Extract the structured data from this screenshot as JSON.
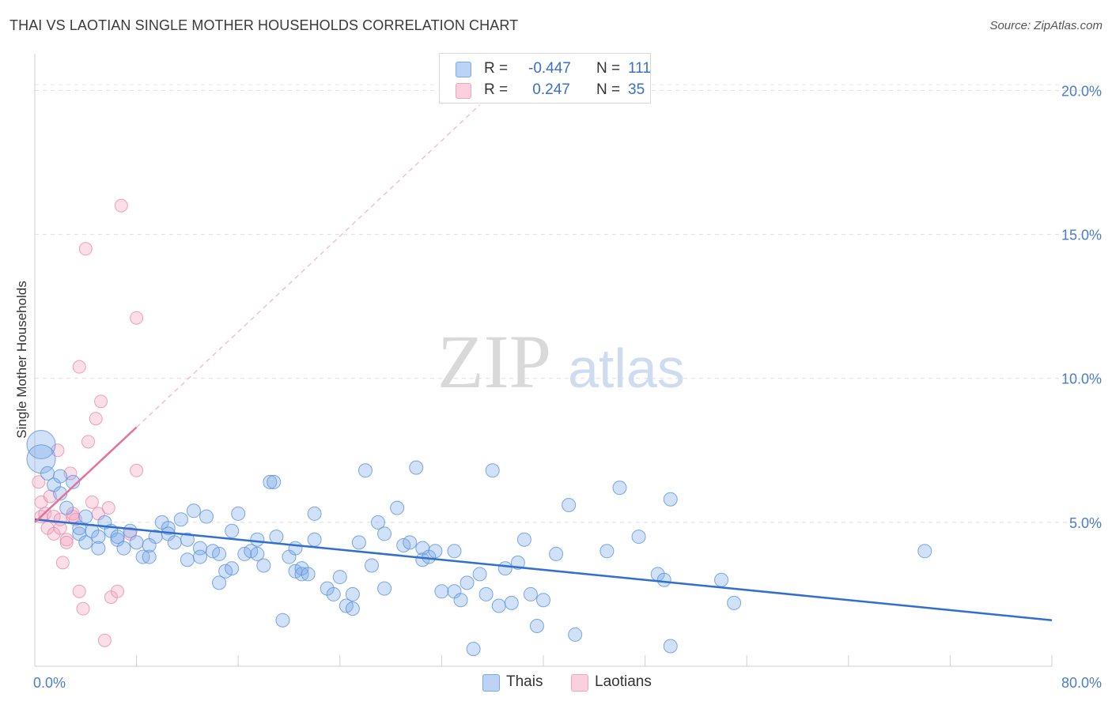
{
  "chart_data": {
    "type": "scatter",
    "title": "THAI VS LAOTIAN SINGLE MOTHER HOUSEHOLDS CORRELATION CHART",
    "source": "Source: ZipAtlas.com",
    "ylabel": "Single Mother Households",
    "xlabel": "",
    "xlim": [
      0,
      80
    ],
    "ylim": [
      0,
      21
    ],
    "x_tick_labels": [
      "0.0%",
      "80.0%"
    ],
    "y_ticks": [
      5,
      10,
      15,
      20
    ],
    "y_tick_labels": [
      "5.0%",
      "10.0%",
      "15.0%",
      "20.0%"
    ],
    "grid": "horizontal dashed",
    "watermark": {
      "zip": "ZIP",
      "atlas": "atlas"
    },
    "legend": {
      "placement": "top-center",
      "rows": [
        {
          "r_label": "R = ",
          "r_value": "-0.447",
          "n_label": "N = ",
          "n_value": "111"
        },
        {
          "r_label": "R = ",
          "r_value": " 0.247",
          "n_label": "N = ",
          "n_value": "35"
        }
      ]
    },
    "series": [
      {
        "name": "Thais",
        "color": "#7aaae8",
        "trend": {
          "x": [
            0,
            80
          ],
          "y": [
            5.1,
            1.6
          ]
        },
        "points": [
          [
            0.5,
            7.7
          ],
          [
            0.5,
            7.2
          ],
          [
            1.0,
            6.7
          ],
          [
            1.5,
            6.3
          ],
          [
            2.0,
            6.6
          ],
          [
            3.0,
            6.4
          ],
          [
            2.0,
            6.0
          ],
          [
            2.5,
            5.5
          ],
          [
            4.0,
            5.2
          ],
          [
            5.5,
            5.0
          ],
          [
            3.5,
            4.6
          ],
          [
            4.5,
            4.7
          ],
          [
            5.0,
            4.5
          ],
          [
            6.0,
            4.7
          ],
          [
            6.5,
            4.4
          ],
          [
            7.5,
            4.7
          ],
          [
            8.0,
            4.3
          ],
          [
            7.0,
            4.1
          ],
          [
            4.0,
            4.3
          ],
          [
            5.0,
            4.1
          ],
          [
            8.5,
            3.8
          ],
          [
            9.0,
            3.8
          ],
          [
            9.5,
            4.5
          ],
          [
            10.0,
            5.0
          ],
          [
            10.5,
            4.8
          ],
          [
            10.5,
            4.6
          ],
          [
            11.0,
            4.3
          ],
          [
            11.5,
            5.1
          ],
          [
            12.0,
            4.4
          ],
          [
            12.0,
            3.7
          ],
          [
            12.5,
            5.4
          ],
          [
            13.0,
            4.1
          ],
          [
            13.0,
            3.8
          ],
          [
            13.5,
            5.2
          ],
          [
            14.0,
            4.0
          ],
          [
            14.5,
            3.9
          ],
          [
            14.5,
            2.9
          ],
          [
            15.0,
            3.3
          ],
          [
            15.5,
            4.7
          ],
          [
            15.5,
            3.4
          ],
          [
            16.0,
            5.3
          ],
          [
            16.5,
            3.9
          ],
          [
            17.0,
            4.0
          ],
          [
            17.5,
            4.4
          ],
          [
            18.0,
            3.5
          ],
          [
            17.5,
            3.9
          ],
          [
            18.5,
            6.4
          ],
          [
            18.8,
            6.4
          ],
          [
            19.0,
            4.5
          ],
          [
            19.5,
            1.6
          ],
          [
            20.0,
            3.8
          ],
          [
            20.5,
            4.1
          ],
          [
            20.5,
            3.3
          ],
          [
            21.0,
            3.4
          ],
          [
            21.0,
            3.2
          ],
          [
            21.5,
            3.2
          ],
          [
            22.0,
            5.3
          ],
          [
            22.0,
            4.4
          ],
          [
            23.0,
            2.7
          ],
          [
            23.5,
            2.5
          ],
          [
            24.0,
            3.1
          ],
          [
            24.5,
            2.1
          ],
          [
            25.0,
            2.5
          ],
          [
            25.0,
            2.0
          ],
          [
            25.5,
            4.3
          ],
          [
            26.0,
            6.8
          ],
          [
            26.5,
            3.5
          ],
          [
            27.0,
            5.0
          ],
          [
            27.5,
            2.7
          ],
          [
            27.5,
            4.6
          ],
          [
            28.5,
            5.5
          ],
          [
            29.0,
            4.2
          ],
          [
            29.5,
            4.3
          ],
          [
            30.0,
            6.9
          ],
          [
            30.5,
            4.1
          ],
          [
            30.5,
            3.7
          ],
          [
            31.0,
            3.8
          ],
          [
            31.5,
            4.0
          ],
          [
            32.0,
            2.6
          ],
          [
            33.0,
            4.0
          ],
          [
            33.0,
            2.6
          ],
          [
            33.5,
            2.3
          ],
          [
            34.0,
            2.9
          ],
          [
            34.5,
            0.6
          ],
          [
            35.0,
            3.2
          ],
          [
            35.5,
            2.5
          ],
          [
            36.0,
            6.8
          ],
          [
            36.5,
            2.1
          ],
          [
            37.0,
            3.4
          ],
          [
            37.5,
            2.2
          ],
          [
            38.0,
            3.6
          ],
          [
            38.5,
            4.4
          ],
          [
            39.0,
            2.5
          ],
          [
            39.5,
            1.4
          ],
          [
            40.0,
            2.3
          ],
          [
            41.0,
            3.9
          ],
          [
            42.0,
            5.6
          ],
          [
            42.5,
            1.1
          ],
          [
            45.0,
            4.0
          ],
          [
            46.0,
            6.2
          ],
          [
            47.5,
            4.5
          ],
          [
            49.0,
            3.2
          ],
          [
            49.5,
            3.0
          ],
          [
            50.0,
            5.8
          ],
          [
            50.0,
            0.7
          ],
          [
            54.0,
            3.0
          ],
          [
            55.0,
            2.2
          ],
          [
            70.0,
            4.0
          ],
          [
            3.5,
            4.8
          ],
          [
            6.5,
            4.5
          ],
          [
            9.0,
            4.2
          ]
        ]
      },
      {
        "name": "Laotians",
        "color": "#f2a3bf",
        "trend": {
          "x": [
            0,
            8
          ],
          "y": [
            5.0,
            8.3
          ]
        },
        "trend_extension": {
          "x": [
            8,
            35
          ],
          "y": [
            8.3,
            19.5
          ]
        },
        "points": [
          [
            0.3,
            6.4
          ],
          [
            0.5,
            5.7
          ],
          [
            0.5,
            5.2
          ],
          [
            0.8,
            5.3
          ],
          [
            1.0,
            4.8
          ],
          [
            1.2,
            5.9
          ],
          [
            1.5,
            5.2
          ],
          [
            1.8,
            7.5
          ],
          [
            1.5,
            4.6
          ],
          [
            2.0,
            5.1
          ],
          [
            2.0,
            4.8
          ],
          [
            2.2,
            3.6
          ],
          [
            2.5,
            4.4
          ],
          [
            2.5,
            4.3
          ],
          [
            2.8,
            6.7
          ],
          [
            3.0,
            5.3
          ],
          [
            3.2,
            5.1
          ],
          [
            3.5,
            2.6
          ],
          [
            3.5,
            10.4
          ],
          [
            3.8,
            2.0
          ],
          [
            4.0,
            14.5
          ],
          [
            4.2,
            7.8
          ],
          [
            4.5,
            5.7
          ],
          [
            4.8,
            8.6
          ],
          [
            5.0,
            5.3
          ],
          [
            5.2,
            9.2
          ],
          [
            5.5,
            0.9
          ],
          [
            5.8,
            5.5
          ],
          [
            6.0,
            2.4
          ],
          [
            6.5,
            2.6
          ],
          [
            6.8,
            16.0
          ],
          [
            7.5,
            4.6
          ],
          [
            8.0,
            12.1
          ],
          [
            8.0,
            6.8
          ],
          [
            3.0,
            5.2
          ]
        ]
      }
    ]
  },
  "bottom_legend": [
    "Thais",
    "Laotians"
  ]
}
